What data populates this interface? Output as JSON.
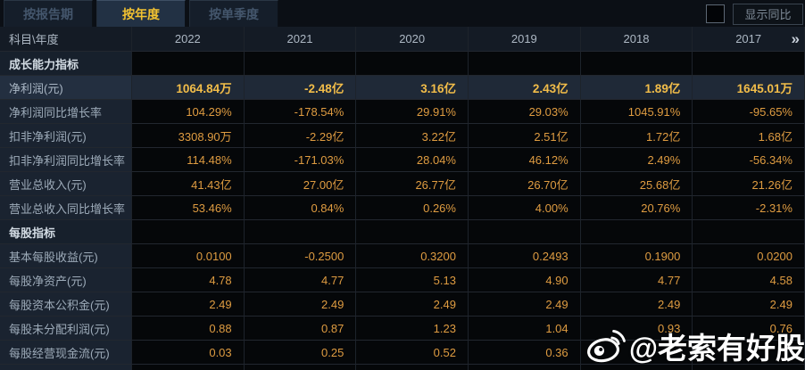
{
  "tabs": [
    {
      "label": "按报告期",
      "active": false
    },
    {
      "label": "按年度",
      "active": true
    },
    {
      "label": "按单季度",
      "active": false
    }
  ],
  "toolbar": {
    "show_yoy_label": "显示同比",
    "checkbox_checked": false
  },
  "table": {
    "corner_header": "科目\\年度",
    "more_icon": "»",
    "years": [
      "2022",
      "2021",
      "2020",
      "2019",
      "2018",
      "2017"
    ],
    "rows": [
      {
        "type": "section",
        "label": "成长能力指标"
      },
      {
        "type": "data",
        "highlight": true,
        "label": "净利润(元)",
        "values": [
          "1064.84万",
          "-2.48亿",
          "3.16亿",
          "2.43亿",
          "1.89亿",
          "1645.01万"
        ]
      },
      {
        "type": "data",
        "highlight": false,
        "label": "净利润同比增长率",
        "values": [
          "104.29%",
          "-178.54%",
          "29.91%",
          "29.03%",
          "1045.91%",
          "-95.65%"
        ]
      },
      {
        "type": "data",
        "highlight": false,
        "label": "扣非净利润(元)",
        "values": [
          "3308.90万",
          "-2.29亿",
          "3.22亿",
          "2.51亿",
          "1.72亿",
          "1.68亿"
        ]
      },
      {
        "type": "data",
        "highlight": false,
        "label": "扣非净利润同比增长率",
        "values": [
          "114.48%",
          "-171.03%",
          "28.04%",
          "46.12%",
          "2.49%",
          "-56.34%"
        ]
      },
      {
        "type": "data",
        "highlight": false,
        "label": "营业总收入(元)",
        "values": [
          "41.43亿",
          "27.00亿",
          "26.77亿",
          "26.70亿",
          "25.68亿",
          "21.26亿"
        ]
      },
      {
        "type": "data",
        "highlight": false,
        "label": "营业总收入同比增长率",
        "values": [
          "53.46%",
          "0.84%",
          "0.26%",
          "4.00%",
          "20.76%",
          "-2.31%"
        ]
      },
      {
        "type": "section",
        "label": "每股指标"
      },
      {
        "type": "data",
        "highlight": false,
        "label": "基本每股收益(元)",
        "values": [
          "0.0100",
          "-0.2500",
          "0.3200",
          "0.2493",
          "0.1900",
          "0.0200"
        ]
      },
      {
        "type": "data",
        "highlight": false,
        "label": "每股净资产(元)",
        "values": [
          "4.78",
          "4.77",
          "5.13",
          "4.90",
          "4.77",
          "4.58"
        ]
      },
      {
        "type": "data",
        "highlight": false,
        "label": "每股资本公积金(元)",
        "values": [
          "2.49",
          "2.49",
          "2.49",
          "2.49",
          "2.49",
          "2.49"
        ]
      },
      {
        "type": "data",
        "highlight": false,
        "label": "每股未分配利润(元)",
        "values": [
          "0.88",
          "0.87",
          "1.23",
          "1.04",
          "0.93",
          "0.76"
        ]
      },
      {
        "type": "data",
        "highlight": false,
        "label": "每股经营现金流(元)",
        "values": [
          "0.03",
          "0.25",
          "0.52",
          "0.36",
          "",
          ""
        ]
      }
    ]
  },
  "watermark": {
    "text": "@老索有好股",
    "icon": "weibo-logo"
  },
  "colors": {
    "value_text": "#df9c41",
    "highlight_value_text": "#f2bd49",
    "active_tab_text": "#f2c231",
    "label_column_bg": "#1a2330",
    "value_cell_bg": "#050709",
    "highlight_row_bg": "#1f2937"
  }
}
